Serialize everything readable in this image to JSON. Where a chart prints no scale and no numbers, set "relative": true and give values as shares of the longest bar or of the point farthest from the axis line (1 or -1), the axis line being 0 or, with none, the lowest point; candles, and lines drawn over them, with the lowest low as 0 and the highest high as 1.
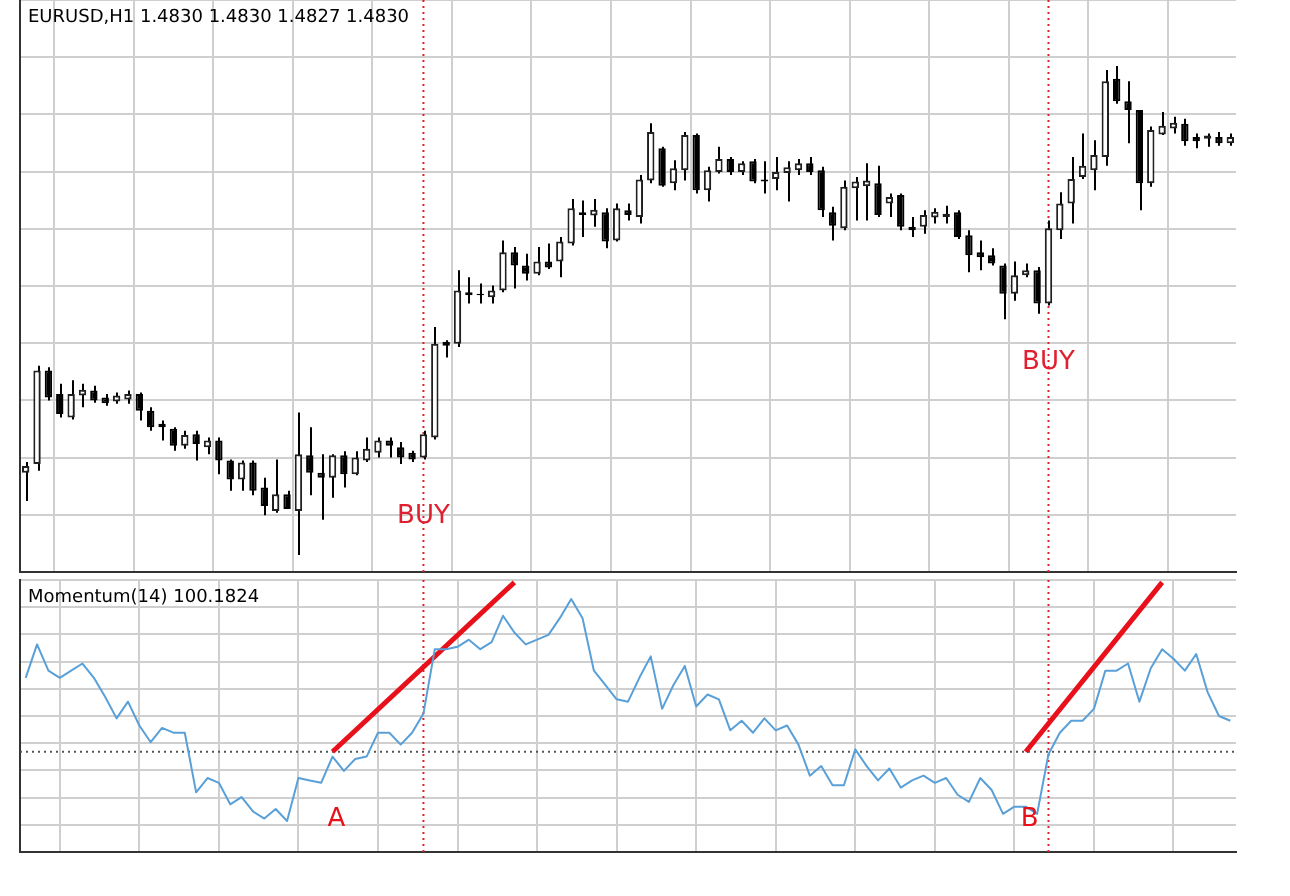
{
  "chart_data": [
    {
      "type": "candlestick",
      "title": "EURUSD,H1 1.4830 1.4830 1.4827 1.4830",
      "relative": true,
      "grid": true,
      "tick_labels": false,
      "categories": [
        null,
        null,
        null,
        null,
        null,
        null,
        null,
        null,
        null,
        null,
        null,
        null,
        null,
        null,
        null,
        null,
        null,
        null,
        null,
        null,
        null,
        null,
        null,
        null,
        null,
        null,
        null,
        null,
        null,
        null,
        null,
        null,
        null,
        null,
        null,
        null,
        null,
        null,
        null,
        null,
        null,
        null,
        null,
        null,
        null,
        null,
        null,
        null,
        null,
        null,
        null,
        null,
        null,
        null,
        null,
        null,
        null,
        null,
        null,
        null,
        null,
        null,
        null,
        null,
        null,
        null,
        null,
        null,
        null,
        null,
        null,
        null,
        null,
        null,
        null,
        null,
        null,
        null,
        null,
        null,
        null,
        null,
        null,
        null,
        null,
        null,
        null,
        null,
        null,
        null,
        null,
        null,
        null,
        null,
        null,
        null,
        null,
        null,
        null,
        null,
        null,
        null,
        null,
        null,
        null,
        null,
        null
      ],
      "ohlc": [
        [
          0.168,
          0.19,
          0.11,
          0.182
        ],
        [
          0.186,
          0.387,
          0.172,
          0.377
        ],
        [
          0.377,
          0.384,
          0.316,
          0.322
        ],
        [
          0.329,
          0.35,
          0.281,
          0.288
        ],
        [
          0.281,
          0.357,
          0.277,
          0.329
        ],
        [
          0.326,
          0.35,
          0.302,
          0.338
        ],
        [
          0.336,
          0.346,
          0.311,
          0.316
        ],
        [
          0.322,
          0.329,
          0.305,
          0.31
        ],
        [
          0.314,
          0.332,
          0.309,
          0.326
        ],
        [
          0.318,
          0.336,
          0.309,
          0.329
        ],
        [
          0.329,
          0.332,
          0.275,
          0.295
        ],
        [
          0.295,
          0.302,
          0.254,
          0.261
        ],
        [
          0.268,
          0.275,
          0.234,
          0.261
        ],
        [
          0.258,
          0.261,
          0.213,
          0.223
        ],
        [
          0.223,
          0.254,
          0.217,
          0.245
        ],
        [
          0.247,
          0.254,
          0.193,
          0.227
        ],
        [
          0.22,
          0.24,
          0.206,
          0.234
        ],
        [
          0.234,
          0.24,
          0.165,
          0.193
        ],
        [
          0.193,
          0.195,
          0.131,
          0.154
        ],
        [
          0.154,
          0.193,
          0.131,
          0.189
        ],
        [
          0.189,
          0.193,
          0.122,
          0.131
        ],
        [
          0.138,
          0.158,
          0.081,
          0.1
        ],
        [
          0.09,
          0.195,
          0.086,
          0.124
        ],
        [
          0.124,
          0.131,
          0.094,
          0.094
        ],
        [
          0.09,
          0.291,
          0,
          0.206
        ],
        [
          0.204,
          0.261,
          0.122,
          0.168
        ],
        [
          0.168,
          0.206,
          0.072,
          0.158
        ],
        [
          0.158,
          0.206,
          0.117,
          0.204
        ],
        [
          0.204,
          0.212,
          0.138,
          0.165
        ],
        [
          0.165,
          0.212,
          0.163,
          0.199
        ],
        [
          0.193,
          0.24,
          0.19,
          0.217
        ],
        [
          0.209,
          0.24,
          0.199,
          0.234
        ],
        [
          0.234,
          0.24,
          0.199,
          0.223
        ],
        [
          0.22,
          0.231,
          0.186,
          0.199
        ],
        [
          0.209,
          0.213,
          0.19,
          0.195
        ],
        [
          0.199,
          0.254,
          0.195,
          0.247
        ],
        [
          0.24,
          0.466,
          0.236,
          0.432
        ],
        [
          0.436,
          0.439,
          0.404,
          0.428
        ],
        [
          0.432,
          0.582,
          0.425,
          0.541
        ],
        [
          0.537,
          0.568,
          0.514,
          0.531
        ],
        [
          0.534,
          0.555,
          0.514,
          0.531
        ],
        [
          0.527,
          0.551,
          0.514,
          0.541
        ],
        [
          0.541,
          0.643,
          0.537,
          0.619
        ],
        [
          0.619,
          0.63,
          0.545,
          0.592
        ],
        [
          0.592,
          0.616,
          0.561,
          0.575
        ],
        [
          0.575,
          0.63,
          0.572,
          0.6
        ],
        [
          0.6,
          0.637,
          0.585,
          0.588
        ],
        [
          0.6,
          0.65,
          0.568,
          0.641
        ],
        [
          0.637,
          0.728,
          0.633,
          0.709
        ],
        [
          0.701,
          0.725,
          0.65,
          0.695
        ],
        [
          0.694,
          0.728,
          0.671,
          0.706
        ],
        [
          0.701,
          0.709,
          0.627,
          0.641
        ],
        [
          0.643,
          0.719,
          0.641,
          0.709
        ],
        [
          0.705,
          0.719,
          0.684,
          0.695
        ],
        [
          0.691,
          0.777,
          0.678,
          0.768
        ],
        [
          0.766,
          0.883,
          0.76,
          0.865
        ],
        [
          0.832,
          0.835,
          0.753,
          0.755
        ],
        [
          0.76,
          0.807,
          0.746,
          0.791
        ],
        [
          0.787,
          0.865,
          0.766,
          0.859
        ],
        [
          0.859,
          0.862,
          0.739,
          0.746
        ],
        [
          0.746,
          0.794,
          0.723,
          0.787
        ],
        [
          0.783,
          0.835,
          0.78,
          0.81
        ],
        [
          0.81,
          0.814,
          0.777,
          0.783
        ],
        [
          0.783,
          0.805,
          0.777,
          0.801
        ],
        [
          0.805,
          0.81,
          0.76,
          0.764
        ],
        [
          0.768,
          0.805,
          0.739,
          0.764
        ],
        [
          0.769,
          0.814,
          0.746,
          0.783
        ],
        [
          0.781,
          0.805,
          0.723,
          0.793
        ],
        [
          0.787,
          0.81,
          0.777,
          0.801
        ],
        [
          0.801,
          0.814,
          0.777,
          0.783
        ],
        [
          0.787,
          0.794,
          0.691,
          0.705
        ],
        [
          0.701,
          0.712,
          0.643,
          0.673
        ],
        [
          0.668,
          0.766,
          0.664,
          0.753
        ],
        [
          0.75,
          0.773,
          0.684,
          0.764
        ],
        [
          0.754,
          0.801,
          0.684,
          0.766
        ],
        [
          0.76,
          0.796,
          0.691,
          0.695
        ],
        [
          0.719,
          0.739,
          0.691,
          0.732
        ],
        [
          0.736,
          0.739,
          0.664,
          0.671
        ],
        [
          0.671,
          0.691,
          0.65,
          0.664
        ],
        [
          0.671,
          0.705,
          0.657,
          0.695
        ],
        [
          0.69,
          0.709,
          0.678,
          0.702
        ],
        [
          0.691,
          0.714,
          0.678,
          0.698
        ],
        [
          0.701,
          0.705,
          0.646,
          0.65
        ],
        [
          0.654,
          0.664,
          0.578,
          0.613
        ],
        [
          0.619,
          0.643,
          0.582,
          0.609
        ],
        [
          0.613,
          0.627,
          0.592,
          0.596
        ],
        [
          0.592,
          0.596,
          0.482,
          0.534
        ],
        [
          0.534,
          0.6,
          0.52,
          0.572
        ],
        [
          0.572,
          0.596,
          0.568,
          0.582
        ],
        [
          0.582,
          0.589,
          0.493,
          0.514
        ],
        [
          0.514,
          0.684,
          0.51,
          0.668
        ],
        [
          0.664,
          0.742,
          0.646,
          0.719
        ],
        [
          0.719,
          0.814,
          0.678,
          0.769
        ],
        [
          0.773,
          0.862,
          0.769,
          0.796
        ],
        [
          0.787,
          0.848,
          0.746,
          0.818
        ],
        [
          0.814,
          0.992,
          0.796,
          0.969
        ],
        [
          0.974,
          1,
          0.923,
          0.928
        ],
        [
          0.928,
          0.969,
          0.842,
          0.91
        ],
        [
          0.91,
          0.91,
          0.705,
          0.76
        ],
        [
          0.76,
          0.876,
          0.753,
          0.869
        ],
        [
          0.86,
          0.906,
          0.859,
          0.878
        ],
        [
          0.872,
          0.896,
          0.862,
          0.884
        ],
        [
          0.882,
          0.892,
          0.837,
          0.846
        ],
        [
          0.855,
          0.862,
          0.832,
          0.846
        ],
        [
          0.851,
          0.862,
          0.835,
          0.858
        ],
        [
          0.855,
          0.865,
          0.837,
          0.842
        ],
        [
          0.842,
          0.862,
          0.837,
          0.855
        ]
      ],
      "annotations": [
        "BUY",
        "BUY"
      ]
    },
    {
      "type": "line",
      "title": "Momentum(14) 100.1824",
      "relative": true,
      "grid": true,
      "tick_labels": false,
      "categories": [
        null,
        null,
        null,
        null,
        null,
        null,
        null,
        null,
        null,
        null,
        null,
        null,
        null,
        null,
        null,
        null,
        null,
        null,
        null,
        null,
        null,
        null,
        null,
        null,
        null,
        null,
        null,
        null,
        null,
        null,
        null,
        null,
        null,
        null,
        null,
        null,
        null,
        null,
        null,
        null,
        null,
        null,
        null,
        null,
        null,
        null,
        null,
        null,
        null,
        null,
        null,
        null,
        null,
        null,
        null,
        null,
        null,
        null,
        null,
        null,
        null,
        null,
        null,
        null,
        null,
        null,
        null,
        null,
        null,
        null,
        null,
        null,
        null,
        null,
        null,
        null,
        null,
        null,
        null,
        null,
        null,
        null,
        null,
        null,
        null,
        null,
        null,
        null,
        null,
        null,
        null,
        null,
        null,
        null,
        null,
        null,
        null,
        null,
        null,
        null,
        null,
        null,
        null,
        null,
        null,
        null,
        null
      ],
      "series": [
        {
          "color": "#5aa0d8",
          "values": [
            0.6,
            0.74,
            0.63,
            0.6,
            0.63,
            0.66,
            0.6,
            0.52,
            0.43,
            0.5,
            0.4,
            0.33,
            0.39,
            0.37,
            0.37,
            0.12,
            0.18,
            0.16,
            0.07,
            0.1,
            0.04,
            0.01,
            0.05,
            0,
            0.18,
            0.17,
            0.16,
            0.27,
            0.21,
            0.26,
            0.27,
            0.37,
            0.37,
            0.32,
            0.37,
            0.45,
            0.72,
            0.72,
            0.73,
            0.76,
            0.72,
            0.75,
            0.86,
            0.79,
            0.74,
            0.76,
            0.78,
            0.85,
            0.93,
            0.85,
            0.63,
            0.57,
            0.51,
            0.5,
            0.6,
            0.69,
            0.47,
            0.57,
            0.65,
            0.48,
            0.53,
            0.51,
            0.38,
            0.42,
            0.37,
            0.43,
            0.38,
            0.4,
            0.32,
            0.19,
            0.23,
            0.15,
            0.15,
            0.3,
            0.23,
            0.17,
            0.22,
            0.14,
            0.17,
            0.19,
            0.16,
            0.18,
            0.11,
            0.08,
            0.18,
            0.13,
            0.03,
            0.06,
            0.06,
            0.03,
            0.28,
            0.37,
            0.42,
            0.42,
            0.47,
            0.63,
            0.63,
            0.66,
            0.5,
            0.64,
            0.72,
            0.68,
            0.63,
            0.7,
            0.54,
            0.44,
            0.42
          ]
        },
        {
          "name": "A",
          "color": "#e8101a",
          "values": [
            null,
            null,
            null,
            null,
            null,
            null,
            null,
            null,
            null,
            null,
            null,
            null,
            null,
            null,
            null,
            null,
            null,
            null,
            null,
            null,
            null,
            null,
            null,
            null,
            null,
            null,
            null,
            0.29,
            null,
            null,
            null,
            null,
            null,
            null,
            null,
            null,
            null,
            null,
            null,
            null,
            null,
            null,
            null,
            1,
            null,
            null,
            null,
            null,
            null,
            null,
            null,
            null,
            null,
            null,
            null,
            null,
            null,
            null,
            null,
            null,
            null,
            null,
            null,
            null,
            null,
            null,
            null,
            null,
            null,
            null,
            null,
            null,
            null,
            null,
            null,
            null,
            null,
            null,
            null,
            null,
            null,
            null,
            null,
            null,
            null,
            null,
            null,
            null,
            null,
            null,
            null,
            null,
            null,
            null,
            null,
            null,
            null,
            null,
            null,
            null,
            null,
            null,
            null,
            null,
            null,
            null,
            null
          ]
        },
        {
          "name": "B",
          "color": "#e8101a",
          "values": [
            null,
            null,
            null,
            null,
            null,
            null,
            null,
            null,
            null,
            null,
            null,
            null,
            null,
            null,
            null,
            null,
            null,
            null,
            null,
            null,
            null,
            null,
            null,
            null,
            null,
            null,
            null,
            null,
            null,
            null,
            null,
            null,
            null,
            null,
            null,
            null,
            null,
            null,
            null,
            null,
            null,
            null,
            null,
            null,
            null,
            null,
            null,
            null,
            null,
            null,
            null,
            null,
            null,
            null,
            null,
            null,
            null,
            null,
            null,
            null,
            null,
            null,
            null,
            null,
            null,
            null,
            null,
            null,
            null,
            null,
            null,
            null,
            null,
            null,
            null,
            null,
            null,
            null,
            null,
            null,
            null,
            null,
            null,
            null,
            null,
            null,
            null,
            null,
            0.29,
            null,
            null,
            null,
            null,
            null,
            null,
            null,
            null,
            null,
            null,
            null,
            1,
            null,
            null,
            null,
            null,
            null,
            null
          ]
        }
      ],
      "ref_lines": [
        {
          "axis": "y",
          "value": 0.29,
          "color": "#555555",
          "line_style": "dotted"
        }
      ]
    }
  ]
}
